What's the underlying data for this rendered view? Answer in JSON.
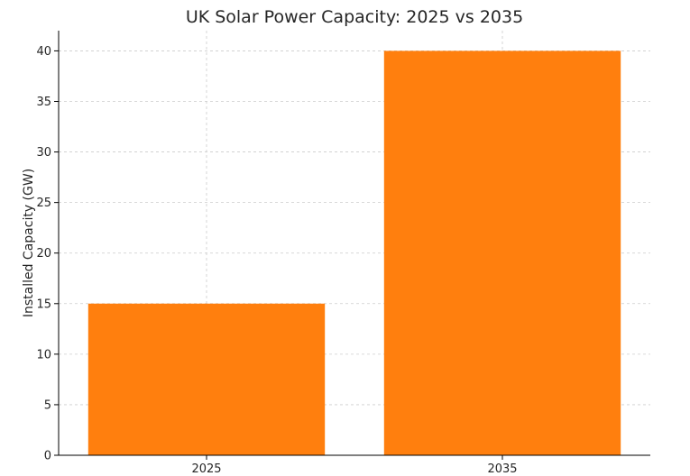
{
  "chart_data": {
    "type": "bar",
    "title": "UK Solar Power Capacity: 2025 vs 2035",
    "xlabel": "",
    "ylabel": "Installed Capacity (GW)",
    "categories": [
      "2025",
      "2035"
    ],
    "values": [
      15,
      40
    ],
    "ylim": [
      0,
      42
    ],
    "yticks": [
      0,
      5,
      10,
      15,
      20,
      25,
      30,
      35,
      40
    ],
    "grid": true,
    "colors": {
      "bar": "#ff7f0e",
      "grid": "#cccccc",
      "axis": "#000000"
    }
  }
}
